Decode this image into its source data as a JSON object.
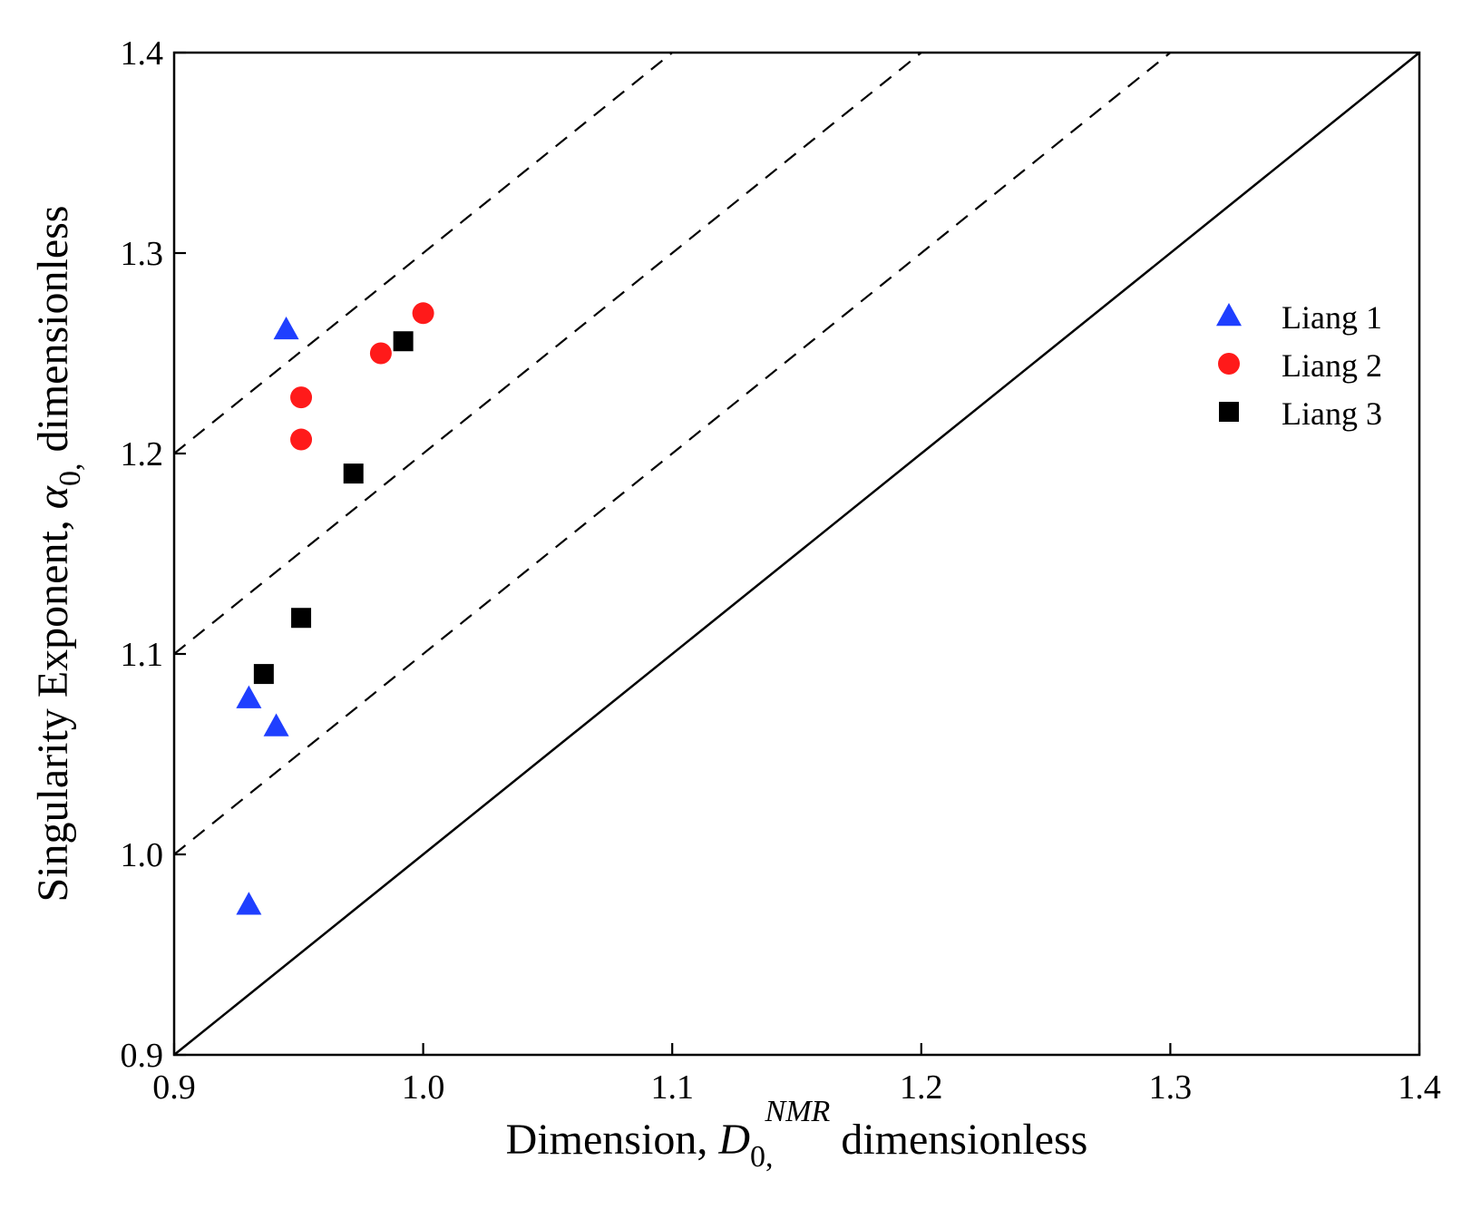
{
  "chart_data": {
    "type": "scatter",
    "title": "",
    "xlabel": {
      "prefix": "Dimension, ",
      "symbol": "D",
      "sub": "0,",
      "sup": "NMR",
      "suffix": " dimensionless"
    },
    "ylabel": {
      "prefix": "Singularity Exponent, ",
      "symbol": "α",
      "sub": "0,",
      "suffix": " dimensionless"
    },
    "xlim": [
      0.9,
      1.4
    ],
    "ylim": [
      0.9,
      1.4
    ],
    "xticks": [
      0.9,
      1.0,
      1.1,
      1.2,
      1.3,
      1.4
    ],
    "yticks": [
      0.9,
      1.0,
      1.1,
      1.2,
      1.3,
      1.4
    ],
    "xtick_labels": [
      "0.9",
      "1.0",
      "1.1",
      "1.2",
      "1.3",
      "1.4"
    ],
    "ytick_labels": [
      "0.9",
      "1.0",
      "1.1",
      "1.2",
      "1.3",
      "1.4"
    ],
    "legend_position": "right",
    "series": [
      {
        "name": "Liang 1",
        "marker": "triangle",
        "color": "#1f3fff",
        "points": [
          [
            0.945,
            1.262
          ],
          [
            0.93,
            1.078
          ],
          [
            0.941,
            1.064
          ],
          [
            0.93,
            0.975
          ]
        ]
      },
      {
        "name": "Liang 2",
        "marker": "circle",
        "color": "#ff1a1a",
        "points": [
          [
            1.0,
            1.27
          ],
          [
            0.983,
            1.25
          ],
          [
            0.951,
            1.228
          ],
          [
            0.951,
            1.207
          ]
        ]
      },
      {
        "name": "Liang 3",
        "marker": "square",
        "color": "#000000",
        "points": [
          [
            0.992,
            1.256
          ],
          [
            0.972,
            1.19
          ],
          [
            0.951,
            1.118
          ],
          [
            0.936,
            1.09
          ]
        ]
      }
    ],
    "reference_lines": [
      {
        "name": "1:1 line",
        "style": "solid",
        "from": [
          0.9,
          0.9
        ],
        "to": [
          1.4,
          1.4
        ]
      },
      {
        "name": "offset +0.1",
        "style": "dashed",
        "from": [
          0.9,
          1.0
        ],
        "to": [
          1.3,
          1.4
        ]
      },
      {
        "name": "offset +0.2",
        "style": "dashed",
        "from": [
          0.9,
          1.1
        ],
        "to": [
          1.2,
          1.4
        ]
      },
      {
        "name": "offset +0.3",
        "style": "dashed",
        "from": [
          0.9,
          1.2
        ],
        "to": [
          1.1,
          1.4
        ]
      }
    ]
  }
}
